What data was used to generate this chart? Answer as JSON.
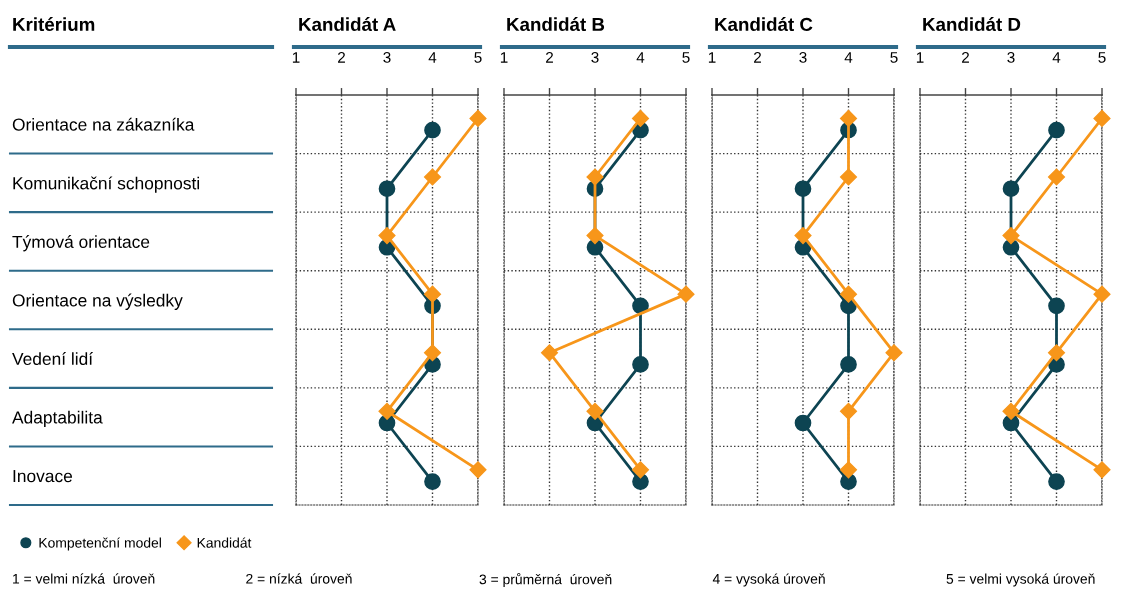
{
  "chart_data": [
    {
      "type": "line",
      "title": "Kandidát A",
      "ylabel": "Kritérium",
      "orientation": "horizontal",
      "categories": [
        "Orientace na zákazníka",
        "Komunikační schopnosti",
        "Týmová orientace",
        "Orientace na výsledky",
        "Vedení lidí",
        "Adaptabilita",
        "Inovace"
      ],
      "series": [
        {
          "name": "Kompetenční model",
          "color": "#0d4452",
          "marker": "circle",
          "values": [
            4,
            3,
            3,
            4,
            4,
            3,
            4
          ]
        },
        {
          "name": "Kandidát",
          "color": "#f7961a",
          "marker": "diamond",
          "values": [
            5,
            4,
            3,
            4,
            4,
            3,
            5
          ]
        }
      ],
      "xlim": [
        1,
        5
      ],
      "xticks": [
        1,
        2,
        3,
        4,
        5
      ],
      "grid": true,
      "legend": "bottom left",
      "line_style": "solid",
      "annotations": [
        "1 = velmi nízká  úroveň",
        "2 = nízká  úroveň",
        "3 = průměrná  úroveň",
        "4 = vysoká úroveň",
        "5 = velmi vysoká úroveň"
      ]
    },
    {
      "type": "line",
      "title": "Kandidát B",
      "orientation": "horizontal",
      "tick_labels": "x",
      "categories": [
        null,
        null,
        null,
        null,
        null,
        null,
        null
      ],
      "series": [
        {
          "color": "#0d4452",
          "marker": "circle",
          "values": [
            4,
            3,
            3,
            4,
            4,
            3,
            4
          ]
        },
        {
          "color": "#f7961a",
          "marker": "diamond",
          "values": [
            4,
            3,
            3,
            5,
            2,
            3,
            4
          ]
        }
      ],
      "xlim": [
        1,
        5
      ],
      "xticks": [
        1,
        2,
        3,
        4,
        5
      ],
      "grid": true,
      "line_style": "solid"
    },
    {
      "type": "line",
      "title": "Kandidát C",
      "orientation": "horizontal",
      "tick_labels": "x",
      "categories": [
        null,
        null,
        null,
        null,
        null,
        null,
        null
      ],
      "series": [
        {
          "color": "#0d4452",
          "marker": "circle",
          "values": [
            4,
            3,
            3,
            4,
            4,
            3,
            4
          ]
        },
        {
          "color": "#f7961a",
          "marker": "diamond",
          "values": [
            4,
            4,
            3,
            4,
            5,
            4,
            4
          ]
        }
      ],
      "xlim": [
        1,
        5
      ],
      "xticks": [
        1,
        2,
        3,
        4,
        5
      ],
      "grid": true,
      "line_style": "solid"
    },
    {
      "type": "line",
      "title": "Kandidát D",
      "orientation": "horizontal",
      "tick_labels": "x",
      "categories": [
        null,
        null,
        null,
        null,
        null,
        null,
        null
      ],
      "series": [
        {
          "color": "#0d4452",
          "marker": "circle",
          "values": [
            4,
            3,
            3,
            4,
            4,
            3,
            4
          ]
        },
        {
          "color": "#f7961a",
          "marker": "diamond",
          "values": [
            5,
            4,
            3,
            5,
            4,
            3,
            5
          ]
        }
      ],
      "xlim": [
        1,
        5
      ],
      "xticks": [
        1,
        2,
        3,
        4,
        5
      ],
      "grid": true,
      "line_style": "solid"
    }
  ]
}
